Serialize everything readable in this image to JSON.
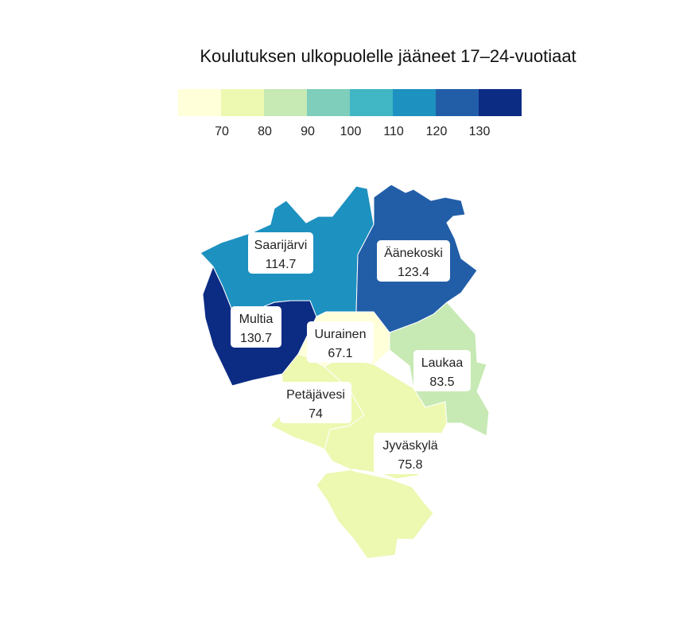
{
  "title": "Koulutuksen ulkopuolelle jääneet 17–24-vuotiaat",
  "legend": {
    "colors": [
      "#ffffd9",
      "#edf8b1",
      "#c7e9b4",
      "#7fcdbb",
      "#41b6c4",
      "#1d91c0",
      "#225ea8",
      "#0c2c84"
    ],
    "ticks": [
      "70",
      "80",
      "90",
      "100",
      "110",
      "120",
      "130"
    ]
  },
  "chart_data": {
    "type": "choropleth",
    "title": "Koulutuksen ulkopuolelle jääneet 17–24-vuotiaat",
    "scale": {
      "breaks": [
        70,
        80,
        90,
        100,
        110,
        120,
        130
      ]
    },
    "regions": [
      {
        "name": "Saarijärvi",
        "value": "114.7",
        "color": "#1d91c0"
      },
      {
        "name": "Äänekoski",
        "value": "123.4",
        "color": "#225ea8"
      },
      {
        "name": "Multia",
        "value": "130.7",
        "color": "#0c2c84"
      },
      {
        "name": "Uurainen",
        "value": "67.1",
        "color": "#ffffd9"
      },
      {
        "name": "Laukaa",
        "value": "83.5",
        "color": "#c7e9b4"
      },
      {
        "name": "Petäjävesi",
        "value": "74",
        "color": "#edf8b1"
      },
      {
        "name": "Jyväskylä",
        "value": "75.8",
        "color": "#edf8b1"
      }
    ]
  }
}
